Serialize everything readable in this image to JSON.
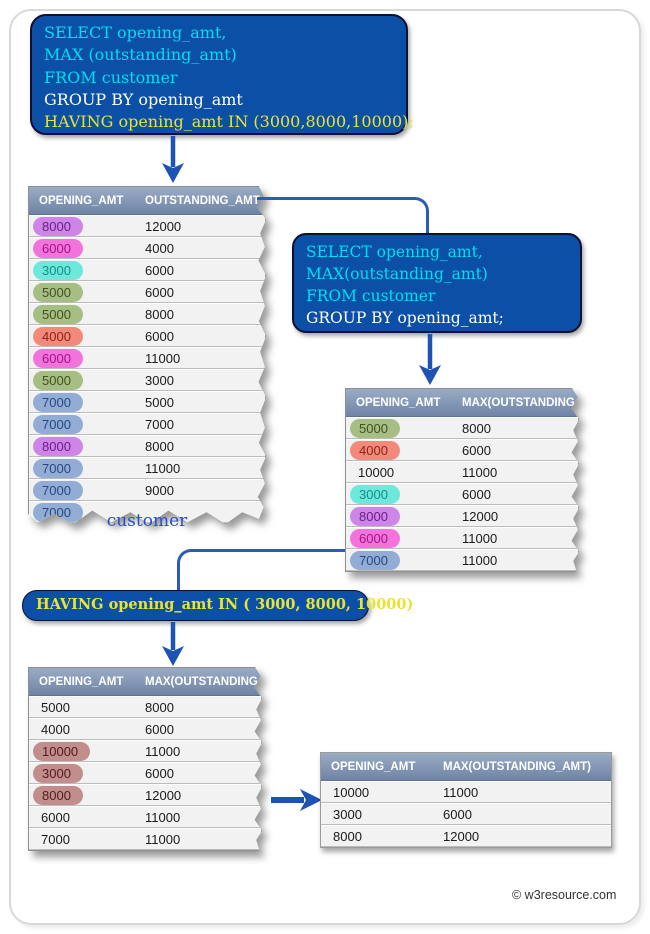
{
  "queries": {
    "full_query": {
      "line1": "SELECT opening_amt,",
      "line2": "MAX (outstanding_amt)",
      "line3": "FROM customer",
      "line4": "GROUP BY opening_amt",
      "line5": "HAVING opening_amt IN (3000,8000,10000);"
    },
    "group_query": {
      "line1": "SELECT opening_amt,",
      "line2": "MAX(outstanding_amt)",
      "line3": "FROM customer",
      "line4": "GROUP BY opening_amt;"
    },
    "having_clause": "HAVING opening_amt IN  ( 3000, 8000, 10000)"
  },
  "tables": {
    "customer": {
      "label": "customer",
      "headers": [
        "OPENING_AMT",
        "OUTSTANDING_AMT"
      ],
      "rows": [
        {
          "opening_amt": "8000",
          "amount": "12000",
          "highlight": "purple"
        },
        {
          "opening_amt": "6000",
          "amount": "4000",
          "highlight": "magenta"
        },
        {
          "opening_amt": "3000",
          "amount": "6000",
          "highlight": "cyan"
        },
        {
          "opening_amt": "5000",
          "amount": "6000",
          "highlight": "green"
        },
        {
          "opening_amt": "5000",
          "amount": "8000",
          "highlight": "green"
        },
        {
          "opening_amt": "4000",
          "amount": "6000",
          "highlight": "red"
        },
        {
          "opening_amt": "6000",
          "amount": "11000",
          "highlight": "magenta"
        },
        {
          "opening_amt": "5000",
          "amount": "3000",
          "highlight": "green"
        },
        {
          "opening_amt": "7000",
          "amount": "5000",
          "highlight": "blue"
        },
        {
          "opening_amt": "7000",
          "amount": "7000",
          "highlight": "blue"
        },
        {
          "opening_amt": "8000",
          "amount": "8000",
          "highlight": "purple"
        },
        {
          "opening_amt": "7000",
          "amount": "11000",
          "highlight": "blue"
        },
        {
          "opening_amt": "7000",
          "amount": "9000",
          "highlight": "blue"
        },
        {
          "opening_amt": "7000",
          "amount": "",
          "highlight": "blue"
        }
      ]
    },
    "grouped": {
      "headers": [
        "OPENING_AMT",
        "MAX(OUTSTANDING_AMT)"
      ],
      "rows": [
        {
          "opening_amt": "5000",
          "amount": "8000",
          "highlight": "green"
        },
        {
          "opening_amt": "4000",
          "amount": "6000",
          "highlight": "red"
        },
        {
          "opening_amt": "10000",
          "amount": "11000",
          "highlight": null
        },
        {
          "opening_amt": "3000",
          "amount": "6000",
          "highlight": "cyan"
        },
        {
          "opening_amt": "8000",
          "amount": "12000",
          "highlight": "purple"
        },
        {
          "opening_amt": "6000",
          "amount": "11000",
          "highlight": "magenta"
        },
        {
          "opening_amt": "7000",
          "amount": "11000",
          "highlight": "blue"
        }
      ]
    },
    "having_filtered": {
      "headers": [
        "OPENING_AMT",
        "MAX(OUTSTANDING_AMT)"
      ],
      "rows": [
        {
          "opening_amt": "5000",
          "amount": "8000",
          "highlight": null
        },
        {
          "opening_amt": "4000",
          "amount": "6000",
          "highlight": null
        },
        {
          "opening_amt": "10000",
          "amount": "11000",
          "highlight": "rose"
        },
        {
          "opening_amt": "3000",
          "amount": "6000",
          "highlight": "rose"
        },
        {
          "opening_amt": "8000",
          "amount": "12000",
          "highlight": "rose"
        },
        {
          "opening_amt": "6000",
          "amount": "11000",
          "highlight": null
        },
        {
          "opening_amt": "7000",
          "amount": "11000",
          "highlight": null
        }
      ]
    },
    "result": {
      "headers": [
        "OPENING_AMT",
        "MAX(OUTSTANDING_AMT)"
      ],
      "rows": [
        {
          "opening_amt": "10000",
          "amount": "11000",
          "highlight": null
        },
        {
          "opening_amt": "3000",
          "amount": "6000",
          "highlight": null
        },
        {
          "opening_amt": "8000",
          "amount": "12000",
          "highlight": null
        }
      ]
    }
  },
  "footer": {
    "copyright": "© w3resource.com"
  },
  "colors": {
    "box_blue": "#0b4fa6",
    "keyword_cyan": "#00dff0",
    "clause_white": "#ffffff",
    "having_yellow": "#e9e433",
    "arrow_blue": "#1d53b4",
    "header_gradient_top": "#9aabc4",
    "header_gradient_bottom": "#6f84a5"
  }
}
